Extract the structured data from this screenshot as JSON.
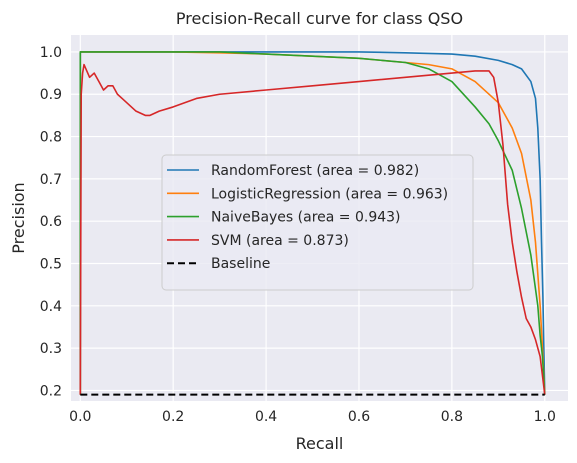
{
  "chart_data": {
    "type": "line",
    "title": "Precision-Recall curve for class QSO",
    "xlabel": "Recall",
    "ylabel": "Precision",
    "xlim": [
      -0.02,
      1.05
    ],
    "ylim": [
      0.175,
      1.04
    ],
    "grid": true,
    "background": "#eaeaf2",
    "legend_position": "center",
    "x_ticks": [
      "0.0",
      "0.2",
      "0.4",
      "0.6",
      "0.8",
      "1.0"
    ],
    "x_tick_values": [
      0.0,
      0.2,
      0.4,
      0.6,
      0.8,
      1.0
    ],
    "y_ticks": [
      "0.2",
      "0.3",
      "0.4",
      "0.5",
      "0.6",
      "0.7",
      "0.8",
      "0.9",
      "1.0"
    ],
    "y_tick_values": [
      0.2,
      0.3,
      0.4,
      0.5,
      0.6,
      0.7,
      0.8,
      0.9,
      1.0
    ],
    "series": [
      {
        "name": "RandomForest (area = 0.982)",
        "color": "#1f77b4",
        "dashed": false,
        "x": [
          0.0,
          0.0,
          0.005,
          0.1,
          0.2,
          0.3,
          0.4,
          0.5,
          0.6,
          0.7,
          0.8,
          0.85,
          0.9,
          0.93,
          0.95,
          0.97,
          0.98,
          0.985,
          0.99,
          0.993,
          0.996,
          0.998,
          1.0
        ],
        "y": [
          0.19,
          1.0,
          1.0,
          1.0,
          1.0,
          1.0,
          1.0,
          1.0,
          1.0,
          0.998,
          0.995,
          0.99,
          0.98,
          0.97,
          0.96,
          0.93,
          0.89,
          0.82,
          0.7,
          0.55,
          0.42,
          0.3,
          0.19
        ]
      },
      {
        "name": "LogisticRegression (area = 0.963)",
        "color": "#ff7f0e",
        "dashed": false,
        "x": [
          0.0,
          0.0,
          0.005,
          0.1,
          0.2,
          0.3,
          0.4,
          0.5,
          0.6,
          0.7,
          0.75,
          0.8,
          0.85,
          0.9,
          0.93,
          0.95,
          0.97,
          0.98,
          0.99,
          0.995,
          1.0
        ],
        "y": [
          0.19,
          1.0,
          1.0,
          1.0,
          1.0,
          0.998,
          0.995,
          0.99,
          0.985,
          0.975,
          0.97,
          0.96,
          0.93,
          0.88,
          0.82,
          0.76,
          0.65,
          0.55,
          0.4,
          0.3,
          0.19
        ]
      },
      {
        "name": "NaiveBayes (area = 0.943)",
        "color": "#2ca02c",
        "dashed": false,
        "x": [
          0.0,
          0.0,
          0.005,
          0.1,
          0.2,
          0.3,
          0.4,
          0.5,
          0.6,
          0.7,
          0.75,
          0.8,
          0.85,
          0.88,
          0.9,
          0.93,
          0.95,
          0.97,
          0.985,
          0.99,
          0.995,
          1.0
        ],
        "y": [
          0.19,
          1.0,
          1.0,
          1.0,
          1.0,
          1.0,
          0.995,
          0.99,
          0.985,
          0.975,
          0.96,
          0.93,
          0.87,
          0.83,
          0.79,
          0.72,
          0.63,
          0.52,
          0.4,
          0.33,
          0.28,
          0.19
        ]
      },
      {
        "name": "SVM (area = 0.873)",
        "color": "#d62728",
        "dashed": false,
        "x": [
          0.0,
          0.002,
          0.005,
          0.008,
          0.012,
          0.02,
          0.03,
          0.04,
          0.05,
          0.06,
          0.07,
          0.08,
          0.09,
          0.1,
          0.12,
          0.14,
          0.15,
          0.17,
          0.2,
          0.25,
          0.3,
          0.4,
          0.5,
          0.6,
          0.7,
          0.8,
          0.85,
          0.88,
          0.89,
          0.9,
          0.91,
          0.92,
          0.93,
          0.94,
          0.95,
          0.96,
          0.97,
          0.98,
          0.99,
          1.0
        ],
        "y": [
          0.19,
          0.9,
          0.95,
          0.97,
          0.96,
          0.94,
          0.95,
          0.93,
          0.91,
          0.92,
          0.92,
          0.9,
          0.89,
          0.88,
          0.86,
          0.85,
          0.85,
          0.86,
          0.87,
          0.89,
          0.9,
          0.91,
          0.92,
          0.93,
          0.94,
          0.95,
          0.955,
          0.955,
          0.94,
          0.88,
          0.78,
          0.64,
          0.55,
          0.48,
          0.42,
          0.37,
          0.35,
          0.32,
          0.28,
          0.19
        ]
      },
      {
        "name": "Baseline",
        "color": "#000000",
        "dashed": true,
        "x": [
          0.0,
          1.0
        ],
        "y": [
          0.19,
          0.19
        ]
      }
    ]
  }
}
